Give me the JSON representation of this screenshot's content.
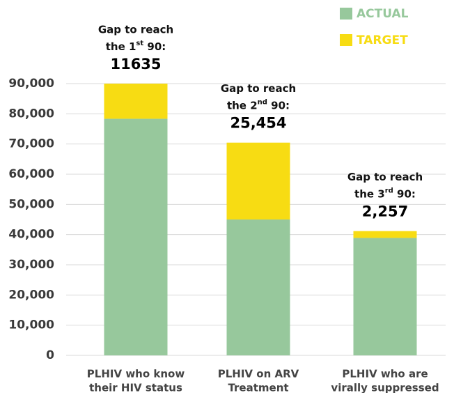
{
  "chart_data": {
    "type": "stacked_bar",
    "categories": [
      [
        "PLHIV who know",
        "their HIV status"
      ],
      [
        "PLHIV on ARV",
        "Treatment"
      ],
      [
        "PLHIV who are",
        "virally suppressed"
      ]
    ],
    "series": [
      {
        "name": "ACTUAL",
        "color": "#97c89c",
        "values": [
          78365,
          45000,
          38900
        ]
      },
      {
        "name": "TARGET",
        "color": "#f7dc13",
        "values": [
          11635,
          25454,
          2257
        ],
        "value_labels": [
          "11635",
          "25,454",
          "2,257"
        ]
      }
    ],
    "annotations": [
      {
        "line1": "Gap to reach",
        "pre": "the 1",
        "sup": "st",
        "post": " 90:"
      },
      {
        "line1": "Gap to reach",
        "pre": "the 2",
        "sup": "nd",
        "post": " 90:"
      },
      {
        "line1": "Gap to reach",
        "pre": "the 3",
        "sup": "rd",
        "post": " 90:"
      }
    ],
    "ylim": [
      0,
      90000
    ],
    "yticks": [
      0,
      {
        "value": 10000,
        "label": "10,000"
      },
      {
        "value": 20000,
        "label": "20,000"
      },
      {
        "value": 30000,
        "label": "30,000"
      },
      {
        "value": 40000,
        "label": "40,000"
      },
      {
        "value": 50000,
        "label": "50,000"
      },
      {
        "value": 60000,
        "label": "60,000"
      },
      {
        "value": 70000,
        "label": "70,000"
      },
      {
        "value": 80000,
        "label": "80,000"
      },
      {
        "value": 90000,
        "label": "90,000"
      }
    ],
    "grid": true,
    "legend": "top-right"
  }
}
